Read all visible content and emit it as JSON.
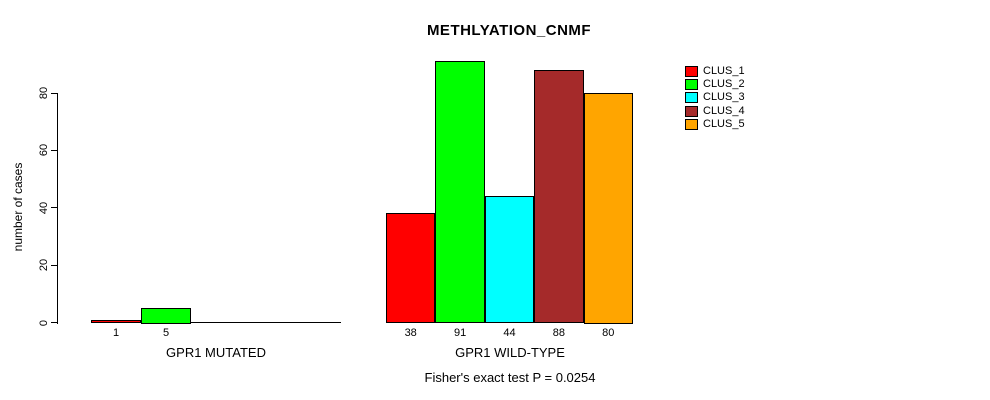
{
  "title": "METHLYATION_CNMF",
  "chart_data": {
    "type": "bar",
    "title": "METHLYATION_CNMF",
    "ylabel": "number of cases",
    "xlabel": "",
    "yticks": [
      0,
      20,
      40,
      60,
      80
    ],
    "ylim": [
      0,
      93
    ],
    "grid": false,
    "annotation": "Fisher's exact test P = 0.0254",
    "legend_position": "top-right",
    "series": [
      {
        "name": "CLUS_1",
        "color": "#FF0000"
      },
      {
        "name": "CLUS_2",
        "color": "#00FF00"
      },
      {
        "name": "CLUS_3",
        "color": "#00FFFF"
      },
      {
        "name": "CLUS_4",
        "color": "#A52A2A"
      },
      {
        "name": "CLUS_5",
        "color": "#FFA500"
      }
    ],
    "groups": [
      {
        "label": "GPR1 MUTATED",
        "values": [
          1,
          5,
          0,
          0,
          0
        ],
        "bar_labels": [
          "1",
          "5",
          "",
          "",
          ""
        ]
      },
      {
        "label": "GPR1 WILD-TYPE",
        "values": [
          38,
          91,
          44,
          88,
          80
        ],
        "bar_labels": [
          "38",
          "91",
          "44",
          "88",
          "80"
        ]
      }
    ]
  },
  "colors": {
    "background": "#FFFFFF",
    "axis": "#000000",
    "text": "#000000"
  }
}
